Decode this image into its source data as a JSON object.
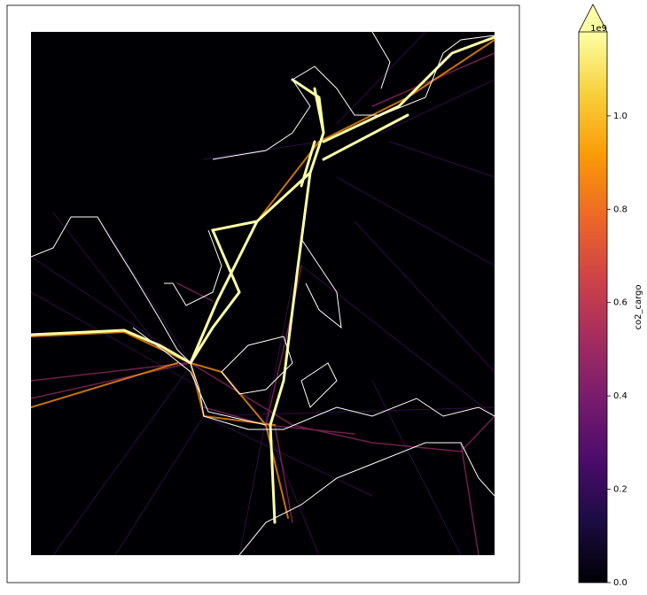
{
  "colorbar": {
    "label": "co2_cargo",
    "offset_label": "1e9",
    "colormap": "inferno",
    "extend": "max",
    "lim": [
      0,
      1.18
    ],
    "ticks": [
      {
        "value": 0,
        "label": "0.0"
      },
      {
        "value": 0.2,
        "label": "0.2"
      },
      {
        "value": 0.4,
        "label": "0.4"
      },
      {
        "value": 0.6,
        "label": "0.6"
      },
      {
        "value": 0.8,
        "label": "0.8"
      },
      {
        "value": 1.0,
        "label": "1.0"
      }
    ]
  }
}
